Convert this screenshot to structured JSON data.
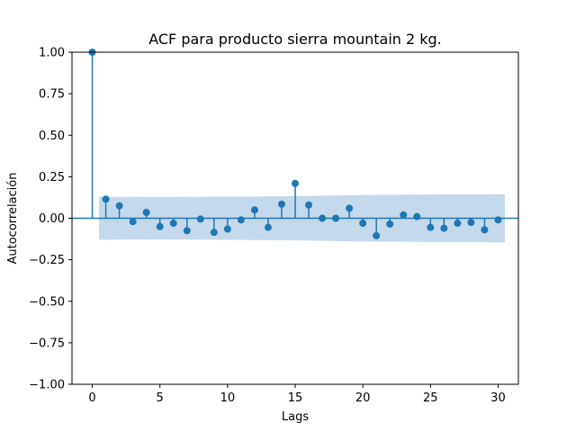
{
  "chart_data": {
    "type": "scatter",
    "title": "ACF para producto sierra mountain 2 kg.",
    "xlabel": "Lags",
    "ylabel": "Autocorrelación",
    "xlim": [
      -1.5,
      31.5
    ],
    "ylim": [
      -1.0,
      1.0
    ],
    "x_ticks": [
      0,
      5,
      10,
      15,
      20,
      25,
      30
    ],
    "x_tick_labels": [
      "0",
      "5",
      "10",
      "15",
      "20",
      "25",
      "30"
    ],
    "y_ticks": [
      1.0,
      0.75,
      0.5,
      0.25,
      0.0,
      -0.25,
      -0.5,
      -0.75,
      -1.0
    ],
    "y_tick_labels": [
      "1.00",
      "0.75",
      "0.50",
      "0.25",
      "0.00",
      "−0.25",
      "−0.50",
      "−0.75",
      "−1.00"
    ],
    "grid": false,
    "series": [
      {
        "x": [
          0,
          1,
          2,
          3,
          4,
          5,
          6,
          7,
          8,
          9,
          10,
          11,
          12,
          13,
          14,
          15,
          16,
          17,
          18,
          19,
          20,
          21,
          22,
          23,
          24,
          25,
          26,
          27,
          28,
          29,
          30
        ],
        "values": [
          1.0,
          0.115,
          0.075,
          -0.02,
          0.035,
          -0.05,
          -0.03,
          -0.075,
          -0.005,
          -0.085,
          -0.065,
          -0.01,
          0.05,
          -0.055,
          0.085,
          0.21,
          0.08,
          0.0,
          0.0,
          0.06,
          -0.03,
          -0.105,
          -0.035,
          0.02,
          0.01,
          -0.055,
          -0.06,
          -0.03,
          -0.025,
          -0.07,
          -0.01
        ]
      }
    ],
    "confidence_band": {
      "x": [
        0.5,
        5,
        10,
        15,
        20,
        25,
        30.5
      ],
      "upper": [
        0.13,
        0.128,
        0.13,
        0.133,
        0.14,
        0.143,
        0.145
      ],
      "lower": [
        -0.13,
        -0.128,
        -0.13,
        -0.133,
        -0.14,
        -0.143,
        -0.145
      ]
    },
    "colors": {
      "marker": "#1f77b4",
      "band": "#c5d9ec",
      "axis": "#000000"
    }
  }
}
